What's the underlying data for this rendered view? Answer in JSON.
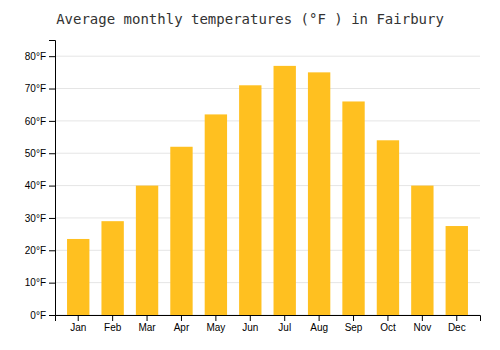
{
  "chart_data": {
    "type": "bar",
    "title": "Average monthly temperatures (°F ) in Fairbury",
    "categories": [
      "Jan",
      "Feb",
      "Mar",
      "Apr",
      "May",
      "Jun",
      "Jul",
      "Aug",
      "Sep",
      "Oct",
      "Nov",
      "Dec"
    ],
    "values": [
      23.5,
      29.0,
      40.0,
      52.0,
      62.0,
      71.0,
      77.0,
      75.0,
      66.0,
      54.0,
      40.0,
      27.5
    ],
    "color": "#FFC020",
    "ylim": [
      0,
      85
    ],
    "yticks": [
      {
        "value": 0,
        "label": "0°F"
      },
      {
        "value": 10,
        "label": "10°F"
      },
      {
        "value": 20,
        "label": "20°F"
      },
      {
        "value": 30,
        "label": "30°F"
      },
      {
        "value": 40,
        "label": "40°F"
      },
      {
        "value": 50,
        "label": "50°F"
      },
      {
        "value": 60,
        "label": "60°F"
      },
      {
        "value": 70,
        "label": "70°F"
      },
      {
        "value": 80,
        "label": "80°F"
      }
    ],
    "grid": true
  }
}
